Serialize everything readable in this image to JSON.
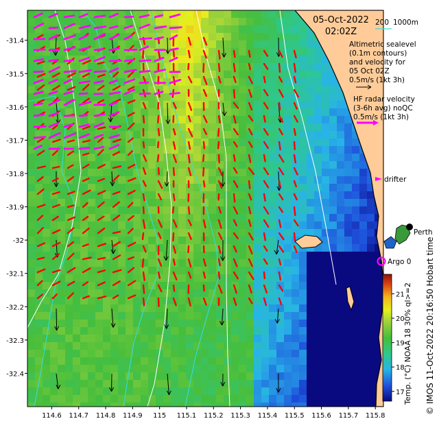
{
  "header": {
    "date": "05-Oct-2022",
    "time": "02:02Z"
  },
  "legend": {
    "isobath_label": "200",
    "isobath_label2": "1000m",
    "sealevel_text": [
      "Altimetric sealevel",
      "(0.1m contours)",
      "and velocity for",
      "05 Oct 02Z",
      "0.5m/s (1kt 3h)"
    ],
    "radar_text": [
      "HF radar velocity",
      "(3-6h avg) noQC",
      "0.5m/s (1kt 3h)"
    ],
    "drifter_label": "drifter",
    "argo_label": "Argo 0",
    "city_label": "Perth"
  },
  "axes": {
    "x_ticks": [
      "114.6",
      "114.7",
      "114.8",
      "114.9",
      "115",
      "115.1",
      "115.2",
      "115.3",
      "115.4",
      "115.5",
      "115.6",
      "115.7",
      "115.8"
    ],
    "x_values": [
      114.6,
      114.7,
      114.8,
      114.9,
      115.0,
      115.1,
      115.2,
      115.3,
      115.4,
      115.5,
      115.6,
      115.7,
      115.8
    ],
    "y_ticks": [
      "-31.4",
      "-31.5",
      "-31.6",
      "-31.7",
      "-31.8",
      "-31.9",
      "-32",
      "-32.1",
      "-32.2",
      "-32.3",
      "-32.4"
    ],
    "y_values": [
      -31.4,
      -31.5,
      -31.6,
      -31.7,
      -31.8,
      -31.9,
      -32.0,
      -32.1,
      -32.2,
      -32.3,
      -32.4
    ],
    "xlim": [
      114.51,
      115.83
    ],
    "ylim": [
      -32.5,
      -31.31
    ]
  },
  "colorbar": {
    "label": "Temp. (°C) NOAA 18 30% ql>=2",
    "ticks": [
      "17",
      "18",
      "19",
      "20",
      "21"
    ],
    "values": [
      17,
      18,
      19,
      20,
      21
    ],
    "range": [
      16.6,
      21.8
    ]
  },
  "credit": "© IMOS 11-Oct-2022 20:16:50 Hobart time",
  "colors": {
    "land": "#ffcc99",
    "radar_arrow": "#ff00ff",
    "altimetry_arrow": "#000000",
    "sst_vector": "#ff0000",
    "isobath": "#33dddd",
    "sealevel_contour": "#ffffff"
  }
}
